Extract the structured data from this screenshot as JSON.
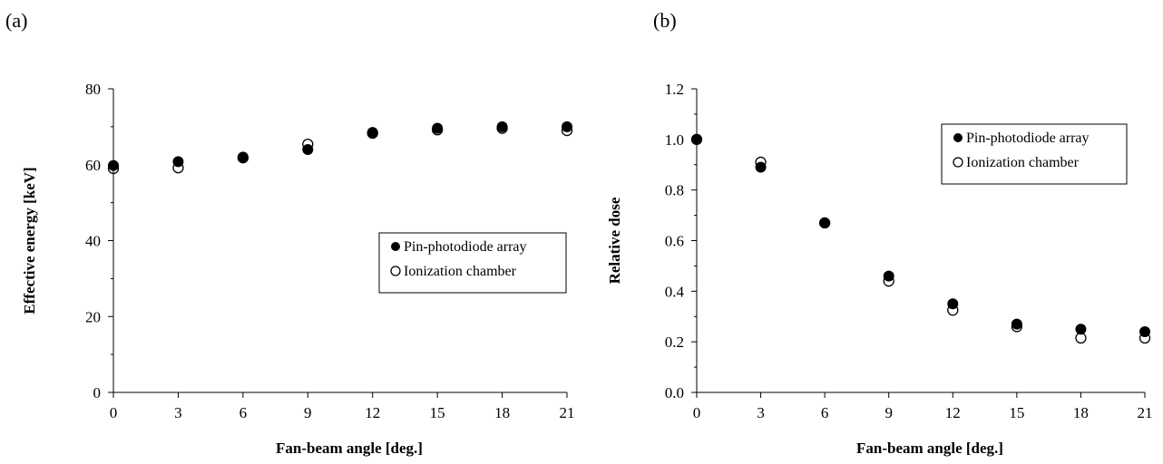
{
  "chart_data": [
    {
      "type": "scatter",
      "panel_label": "(a)",
      "xlabel": "Fan-beam angle [deg.]",
      "ylabel": "Effective energy [keV]",
      "xlim": [
        0,
        21
      ],
      "ylim": [
        0,
        80
      ],
      "xticks": [
        0,
        3,
        6,
        9,
        12,
        15,
        18,
        21
      ],
      "yticks": [
        0,
        20,
        40,
        60,
        80
      ],
      "ytick_labels": [
        "0",
        "20",
        "40",
        "60",
        "80"
      ],
      "minor_yticks": true,
      "grid": false,
      "legend_position": "center-right",
      "series": [
        {
          "name": "Pin-photodiode array",
          "marker": "filled-circle",
          "x": [
            0,
            3,
            6,
            9,
            12,
            15,
            18,
            21
          ],
          "y": [
            59.8,
            60.8,
            62.0,
            64.0,
            68.5,
            69.6,
            70.0,
            70.0
          ]
        },
        {
          "name": "Ionization chamber",
          "marker": "open-circle",
          "x": [
            0,
            3,
            6,
            9,
            12,
            15,
            18,
            21
          ],
          "y": [
            59.0,
            59.2,
            61.8,
            65.4,
            68.3,
            69.2,
            69.6,
            69.0
          ]
        }
      ]
    },
    {
      "type": "scatter",
      "panel_label": "(b)",
      "xlabel": "Fan-beam angle [deg.]",
      "ylabel": "Relative dose",
      "xlim": [
        0,
        21
      ],
      "ylim": [
        0,
        1.2
      ],
      "xticks": [
        0,
        3,
        6,
        9,
        12,
        15,
        18,
        21
      ],
      "yticks": [
        0,
        0.2,
        0.4,
        0.6,
        0.8,
        1.0,
        1.2
      ],
      "ytick_labels": [
        "0.0",
        "0.2",
        "0.4",
        "0.6",
        "0.8",
        "1.0",
        "1.2"
      ],
      "minor_yticks": true,
      "grid": false,
      "legend_position": "top-right",
      "series": [
        {
          "name": "Pin-photodiode array",
          "marker": "filled-circle",
          "x": [
            0,
            3,
            6,
            9,
            12,
            15,
            18,
            21
          ],
          "y": [
            1.0,
            0.89,
            0.67,
            0.46,
            0.35,
            0.27,
            0.25,
            0.24
          ]
        },
        {
          "name": "Ionization chamber",
          "marker": "open-circle",
          "x": [
            0,
            3,
            6,
            9,
            12,
            15,
            18,
            21
          ],
          "y": [
            1.0,
            0.91,
            0.67,
            0.44,
            0.325,
            0.26,
            0.215,
            0.215
          ]
        }
      ]
    }
  ]
}
